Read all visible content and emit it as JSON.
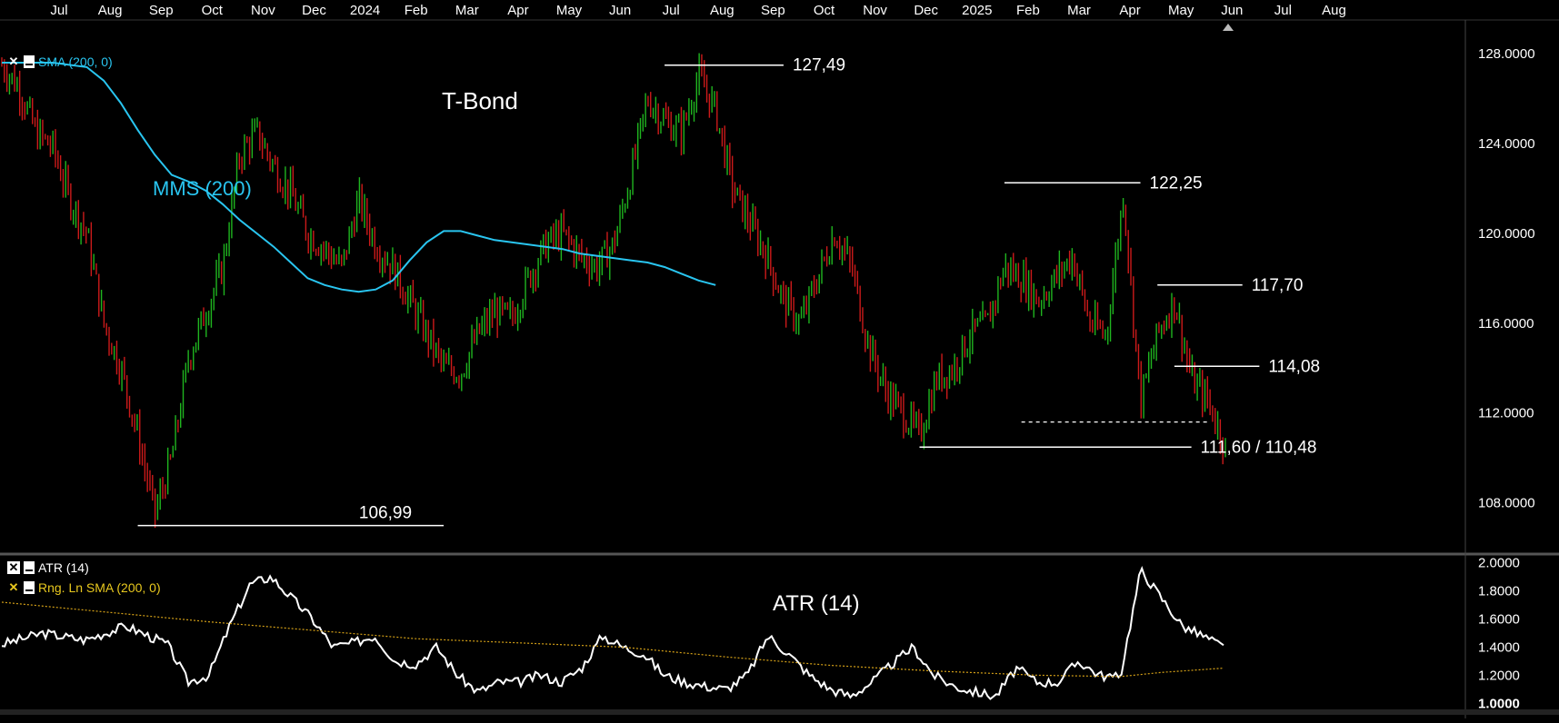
{
  "chart_data": [
    {
      "type": "candlestick",
      "title": "T-Bond",
      "x_axis_labels": [
        "Jul",
        "Aug",
        "Sep",
        "Oct",
        "Nov",
        "Dec",
        "2024",
        "Feb",
        "Mar",
        "Apr",
        "May",
        "Jun",
        "Jul",
        "Aug",
        "Sep",
        "Oct",
        "Nov",
        "Dec",
        "2025",
        "Feb",
        "Mar",
        "Apr",
        "May",
        "Jun",
        "Jul",
        "Aug"
      ],
      "y_ticks": [
        "128.0000",
        "124.0000",
        "120.0000",
        "116.0000",
        "112.0000",
        "108.0000"
      ],
      "ylim": [
        105.8,
        129.5
      ],
      "moving_average": {
        "name": "MMS (200)",
        "legend": "SMA (200, 0)",
        "color": "#29c5f0",
        "points": [
          [
            0,
            127.6
          ],
          [
            3,
            127.6
          ],
          [
            5,
            127.4
          ],
          [
            6,
            126.8
          ],
          [
            7,
            125.8
          ],
          [
            8,
            124.6
          ],
          [
            9,
            123.5
          ],
          [
            10,
            122.6
          ],
          [
            11,
            122.3
          ],
          [
            12,
            121.9
          ],
          [
            13,
            121.3
          ],
          [
            14,
            120.6
          ],
          [
            15,
            120.0
          ],
          [
            16,
            119.4
          ],
          [
            17,
            118.7
          ],
          [
            18,
            118.0
          ],
          [
            19,
            117.7
          ],
          [
            20,
            117.5
          ],
          [
            21,
            117.4
          ],
          [
            22,
            117.5
          ],
          [
            23,
            117.9
          ],
          [
            24,
            118.8
          ],
          [
            25,
            119.6
          ],
          [
            26,
            120.1
          ],
          [
            27,
            120.1
          ],
          [
            28,
            119.9
          ],
          [
            29,
            119.7
          ],
          [
            30,
            119.6
          ],
          [
            31,
            119.5
          ],
          [
            32,
            119.4
          ],
          [
            33,
            119.3
          ],
          [
            34,
            119.1
          ],
          [
            35,
            119.0
          ],
          [
            36,
            118.9
          ],
          [
            37,
            118.8
          ],
          [
            38,
            118.7
          ],
          [
            39,
            118.5
          ],
          [
            40,
            118.2
          ],
          [
            41,
            117.9
          ],
          [
            42,
            117.7
          ]
        ]
      },
      "price_path": [
        [
          0,
          127.5
        ],
        [
          1,
          126.5
        ],
        [
          2,
          124.5
        ],
        [
          3,
          123.8
        ],
        [
          4,
          121.5
        ],
        [
          5,
          120.0
        ],
        [
          6,
          116.0
        ],
        [
          7,
          114.0
        ],
        [
          8,
          111.0
        ],
        [
          9,
          107.5
        ],
        [
          10,
          110.0
        ],
        [
          11,
          114.5
        ],
        [
          12,
          116.5
        ],
        [
          13,
          118.5
        ],
        [
          14,
          123.5
        ],
        [
          15,
          124.5
        ],
        [
          16,
          123.0
        ],
        [
          17,
          121.8
        ],
        [
          18,
          120.0
        ],
        [
          19,
          119.3
        ],
        [
          20,
          118.5
        ],
        [
          21,
          121.5
        ],
        [
          22,
          119.5
        ],
        [
          23,
          118.5
        ],
        [
          24,
          117.0
        ],
        [
          25,
          115.5
        ],
        [
          26,
          114.0
        ],
        [
          27,
          113.8
        ],
        [
          28,
          115.5
        ],
        [
          29,
          116.5
        ],
        [
          30,
          116.2
        ],
        [
          31,
          118.0
        ],
        [
          32,
          119.5
        ],
        [
          33,
          120.0
        ],
        [
          34,
          119.0
        ],
        [
          35,
          118.5
        ],
        [
          36,
          119.5
        ],
        [
          37,
          122.5
        ],
        [
          38,
          126.0
        ],
        [
          39,
          125.0
        ],
        [
          40,
          124.5
        ],
        [
          41,
          127.0
        ],
        [
          42,
          125.5
        ],
        [
          43,
          122.0
        ],
        [
          44,
          120.5
        ],
        [
          45,
          119.0
        ],
        [
          46,
          117.0
        ],
        [
          47,
          116.0
        ],
        [
          48,
          118.0
        ],
        [
          49,
          120.0
        ],
        [
          50,
          118.5
        ],
        [
          51,
          115.0
        ],
        [
          52,
          113.0
        ],
        [
          53,
          112.0
        ],
        [
          54,
          111.0
        ],
        [
          55,
          113.5
        ],
        [
          56,
          114.0
        ],
        [
          57,
          115.5
        ],
        [
          58,
          116.0
        ],
        [
          59,
          118.5
        ],
        [
          60,
          118.0
        ],
        [
          61,
          117.0
        ],
        [
          62,
          118.0
        ],
        [
          63,
          119.0
        ],
        [
          64,
          116.0
        ],
        [
          65,
          115.5
        ],
        [
          66,
          121.8
        ],
        [
          67,
          112.5
        ],
        [
          68,
          115.5
        ],
        [
          69,
          117.0
        ],
        [
          70,
          113.5
        ],
        [
          71,
          112.5
        ],
        [
          72,
          110.5
        ]
      ],
      "annotations": [
        {
          "label": "127,49",
          "value": 127.49,
          "from": 39,
          "to": 46
        },
        {
          "label": "122,25",
          "value": 122.25,
          "from": 59,
          "to": 67
        },
        {
          "label": "117,70",
          "value": 117.7,
          "from": 68,
          "to": 73
        },
        {
          "label": "114,08",
          "value": 114.08,
          "from": 69,
          "to": 74
        },
        {
          "label": "111,60 / 110,48",
          "value": 110.48,
          "dashed_value": 111.6,
          "from": 54,
          "to": 70
        },
        {
          "label": "106,99",
          "value": 106.99,
          "from": 8,
          "to": 26
        }
      ]
    },
    {
      "type": "line",
      "title": "ATR (14)",
      "legend": [
        "ATR (14)",
        "Rng. Ln SMA (200, 0)"
      ],
      "y_ticks": [
        "2.0000",
        "1.8000",
        "1.6000",
        "1.4000",
        "1.2000",
        "1.0000"
      ],
      "ylim": [
        0.95,
        2.05
      ],
      "series": [
        {
          "name": "ATR (14)",
          "color": "#ffffff",
          "points": [
            [
              0,
              1.42
            ],
            [
              2,
              1.5
            ],
            [
              4,
              1.45
            ],
            [
              6,
              1.55
            ],
            [
              8,
              1.42
            ],
            [
              9,
              1.15
            ],
            [
              10,
              1.2
            ],
            [
              11,
              1.55
            ],
            [
              12,
              1.85
            ],
            [
              13,
              1.9
            ],
            [
              14,
              1.75
            ],
            [
              15,
              1.6
            ],
            [
              16,
              1.4
            ],
            [
              17,
              1.43
            ],
            [
              18,
              1.48
            ],
            [
              19,
              1.3
            ],
            [
              20,
              1.28
            ],
            [
              21,
              1.4
            ],
            [
              22,
              1.2
            ],
            [
              23,
              1.08
            ],
            [
              24,
              1.15
            ],
            [
              25,
              1.15
            ],
            [
              26,
              1.2
            ],
            [
              27,
              1.15
            ],
            [
              28,
              1.25
            ],
            [
              29,
              1.48
            ],
            [
              30,
              1.4
            ],
            [
              31,
              1.35
            ],
            [
              32,
              1.2
            ],
            [
              33,
              1.15
            ],
            [
              34,
              1.12
            ],
            [
              35,
              1.1
            ],
            [
              36,
              1.2
            ],
            [
              37,
              1.48
            ],
            [
              38,
              1.35
            ],
            [
              39,
              1.2
            ],
            [
              40,
              1.1
            ],
            [
              41,
              1.05
            ],
            [
              42,
              1.15
            ],
            [
              43,
              1.28
            ],
            [
              44,
              1.4
            ],
            [
              45,
              1.2
            ],
            [
              46,
              1.12
            ],
            [
              47,
              1.08
            ],
            [
              48,
              1.05
            ],
            [
              49,
              1.25
            ],
            [
              50,
              1.15
            ],
            [
              51,
              1.15
            ],
            [
              52,
              1.3
            ],
            [
              53,
              1.2
            ],
            [
              54,
              1.18
            ],
            [
              55,
              1.95
            ],
            [
              56,
              1.75
            ],
            [
              57,
              1.55
            ],
            [
              58,
              1.48
            ],
            [
              59,
              1.4
            ]
          ]
        },
        {
          "name": "Rng. Ln SMA (200, 0)",
          "color": "#d4a017",
          "points": [
            [
              0,
              1.72
            ],
            [
              5,
              1.65
            ],
            [
              10,
              1.58
            ],
            [
              15,
              1.52
            ],
            [
              20,
              1.46
            ],
            [
              25,
              1.43
            ],
            [
              30,
              1.4
            ],
            [
              35,
              1.33
            ],
            [
              40,
              1.27
            ],
            [
              45,
              1.23
            ],
            [
              50,
              1.2
            ],
            [
              54,
              1.19
            ],
            [
              56,
              1.22
            ],
            [
              59,
              1.25
            ]
          ]
        }
      ]
    }
  ]
}
